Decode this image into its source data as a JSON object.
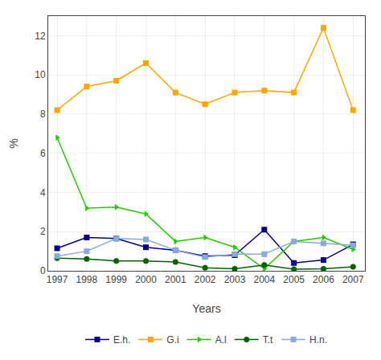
{
  "chart_data": {
    "type": "line",
    "x": [
      1997,
      1998,
      1999,
      2000,
      2001,
      2002,
      2003,
      2004,
      2005,
      2006,
      2007
    ],
    "series": [
      {
        "name": "E.h.",
        "color": "#00008B",
        "marker": "square",
        "values": [
          1.15,
          1.7,
          1.65,
          1.2,
          1.05,
          0.75,
          0.8,
          2.1,
          0.4,
          0.55,
          1.35
        ]
      },
      {
        "name": "G.i",
        "color": "#FFA500",
        "marker": "square",
        "values": [
          8.2,
          9.4,
          9.7,
          10.6,
          9.1,
          8.5,
          9.1,
          9.2,
          9.1,
          12.4,
          8.2
        ]
      },
      {
        "name": "A.l",
        "color": "#22CC00",
        "marker": "triangle-right",
        "values": [
          6.8,
          3.2,
          3.25,
          2.9,
          1.5,
          1.7,
          1.2,
          0.1,
          1.5,
          1.7,
          1.1
        ]
      },
      {
        "name": "T.t",
        "color": "#006400",
        "marker": "circle",
        "values": [
          0.65,
          0.6,
          0.5,
          0.5,
          0.45,
          0.15,
          0.1,
          0.3,
          0.08,
          0.1,
          0.2
        ]
      },
      {
        "name": "H.n.",
        "color": "#88AADD",
        "marker": "square",
        "values": [
          0.75,
          1.0,
          1.65,
          1.6,
          1.05,
          0.7,
          0.85,
          0.85,
          1.5,
          1.4,
          1.3
        ]
      }
    ],
    "xlabel": "Years",
    "ylabel": "%",
    "xlim": [
      1996.7,
      2007.4
    ],
    "xticks": [
      1997,
      1998,
      1999,
      2000,
      2001,
      2002,
      2003,
      2004,
      2005,
      2006,
      2007
    ],
    "ylim": [
      0,
      13
    ],
    "yticks": [
      0,
      2,
      4,
      6,
      8,
      10,
      12
    ],
    "grid": true,
    "legend": "bottom"
  }
}
